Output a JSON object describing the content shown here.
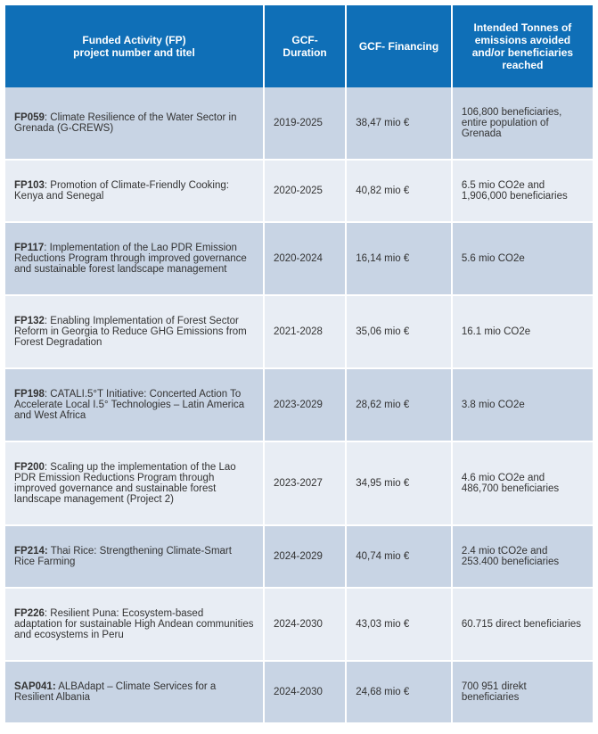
{
  "table": {
    "header_bg": "#0f6fb7",
    "header_color": "#ffffff",
    "header_fontsize": "12px",
    "header_fontweight": "bold",
    "body_fontsize": "11.5px",
    "body_color": "#333333",
    "row_colors": [
      "#c8d4e4",
      "#e8edf4"
    ],
    "columns": [
      "Funded Activity (FP)\nproject number and titel",
      "GCF-Duration",
      "GCF- Financing",
      "Intended Tonnes of emissions avoided and/or beneficiaries reached"
    ],
    "rows": [
      {
        "code": "FP059",
        "title": ": Climate Resilience of the Water Sector in Grenada (G-CREWS)",
        "duration": "2019-2025",
        "financing": "38,47 mio €",
        "impact": "106,800 beneficiaries, entire population of Grenada"
      },
      {
        "code": "FP103",
        "title": ": Promotion of Climate-Friendly Cooking: Kenya and Senegal",
        "duration": "2020-2025",
        "financing": "40,82 mio €",
        "impact": "6.5 mio CO2e and 1,906,000 beneficiaries"
      },
      {
        "code": "FP117",
        "title": ": Implementation of the Lao PDR Emission Reductions Program through improved governance and sustainable forest landscape management",
        "duration": "2020-2024",
        "financing": "16,14 mio €",
        "impact": "5.6 mio CO2e"
      },
      {
        "code": "FP132",
        "title": ": Enabling Implementation of Forest Sector Reform in Georgia to Reduce GHG Emissions from Forest Degradation",
        "duration": "2021-2028",
        "financing": "35,06 mio €",
        "impact": "16.1 mio CO2e"
      },
      {
        "code": "FP198",
        "title": ": CATALI.5°T Initiative: Concerted Action To Accelerate Local I.5° Technologies – Latin America and West Africa",
        "duration": "2023-2029",
        "financing": "28,62 mio €",
        "impact": "3.8 mio CO2e"
      },
      {
        "code": "FP200",
        "title": ": Scaling up the implementation of the Lao PDR Emission Reductions Program through improved governance and sustainable forest landscape management (Project 2)",
        "duration": "2023-2027",
        "financing": "34,95 mio €",
        "impact": "4.6 mio CO2e and 486,700 beneficiaries"
      },
      {
        "code": "FP214",
        "suffix": ":",
        "title": " Thai Rice: Strengthening Climate-Smart Rice Farming",
        "duration": "2024-2029",
        "financing": "40,74 mio €",
        "impact": "2.4 mio tCO2e and 253.400 beneficiaries"
      },
      {
        "code": "FP226",
        "title": ": Resilient Puna: Ecosystem-based adaptation for sustainable High Andean communities and ecosystems in Peru",
        "duration": "2024-2030",
        "financing": "43,03 mio €",
        "impact": "60.715 direct beneficiaries"
      },
      {
        "code": "SAP041",
        "suffix": ":",
        "title": " ALBAdapt – Climate Services for a Resilient Albania",
        "duration": "2024-2030",
        "financing": "24,68 mio €",
        "impact": "700 951 direkt beneficiaries"
      }
    ]
  }
}
